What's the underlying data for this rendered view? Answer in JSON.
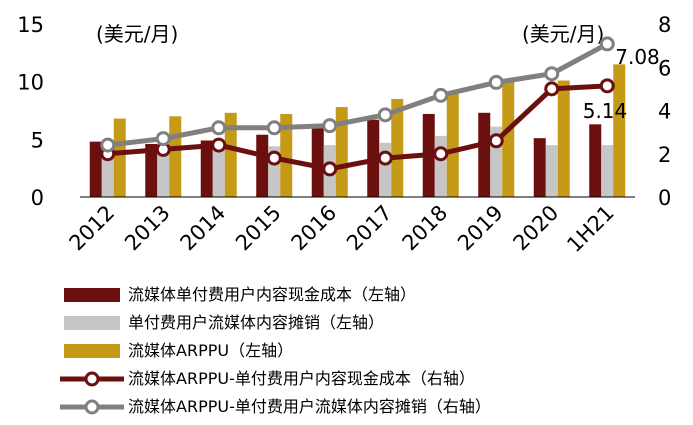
{
  "chart_data": {
    "type": "bar",
    "categories": [
      "2012",
      "2013",
      "2014",
      "2015",
      "2016",
      "2017",
      "2018",
      "2019",
      "2020",
      "1H21"
    ],
    "left_axis": {
      "unit": "(美元/月)",
      "ylim": [
        0,
        15
      ],
      "ticks": [
        "0",
        "5",
        "10",
        "15"
      ]
    },
    "right_axis": {
      "unit": "(美元/月)",
      "ylim": [
        0,
        8
      ],
      "ticks": [
        "0",
        "2",
        "4",
        "6",
        "8"
      ]
    },
    "series": [
      {
        "name": "流媒体单付费用户内容现金成本（左轴）",
        "type": "bar",
        "axis": "left",
        "color": "#6b0f0f",
        "values": [
          4.8,
          4.6,
          4.9,
          5.4,
          6.1,
          6.7,
          7.2,
          7.3,
          5.1,
          6.3
        ]
      },
      {
        "name": "单付费用户流媒体内容摊销（左轴）",
        "type": "bar",
        "axis": "left",
        "color": "#c6c6c6",
        "values": [
          3.7,
          3.9,
          4.2,
          4.4,
          4.5,
          4.7,
          5.3,
          6.1,
          4.5,
          4.5
        ]
      },
      {
        "name": "流媒体ARPPU（左轴）",
        "type": "bar",
        "axis": "left",
        "color": "#c59a16",
        "values": [
          6.8,
          7.0,
          7.3,
          7.2,
          7.8,
          8.5,
          9.1,
          10.0,
          10.1,
          11.5
        ]
      },
      {
        "name": "流媒体ARPPU-单付费用户内容现金成本（右轴）",
        "type": "line",
        "axis": "right",
        "color": "#6b0f0f",
        "values": [
          2.0,
          2.2,
          2.4,
          1.8,
          1.3,
          1.8,
          2.0,
          2.6,
          5.0,
          5.14
        ]
      },
      {
        "name": "流媒体ARPPU-单付费用户流媒体内容摊销（右轴）",
        "type": "line",
        "axis": "right",
        "color": "#808080",
        "values": [
          2.4,
          2.7,
          3.2,
          3.2,
          3.3,
          3.8,
          4.7,
          5.3,
          5.7,
          7.08
        ]
      }
    ],
    "data_labels": [
      {
        "series": 3,
        "index": 9,
        "text": "5.14"
      },
      {
        "series": 4,
        "index": 9,
        "text": "7.08"
      }
    ]
  }
}
